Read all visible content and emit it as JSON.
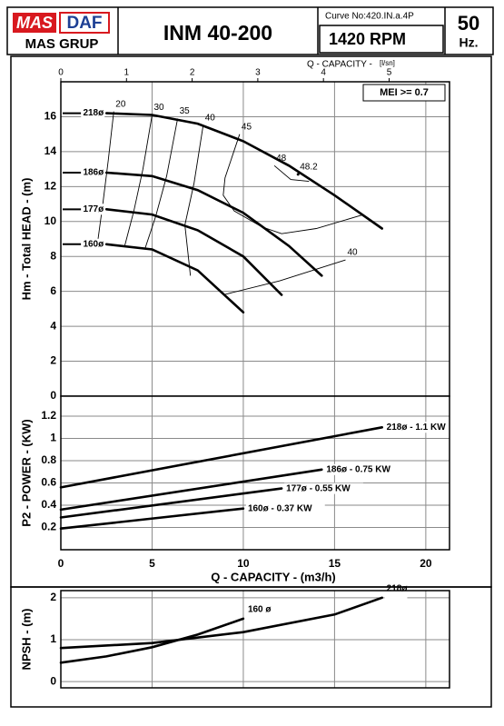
{
  "header": {
    "brand_mas": "MAS",
    "brand_daf": "DAF",
    "brand_group": "MAS GRUP",
    "model": "INM 40-200",
    "curve_no": "Curve No:420.IN.a.4P",
    "speed": "1420 RPM",
    "frequency": "50",
    "frequency_unit": "Hz."
  },
  "chart_data": [
    {
      "type": "line",
      "ylabel": "Hm - Total HEAD - (m)",
      "x2label": "Q - CAPACITY -",
      "x2unit": "[l/sn]",
      "annotation": "MEI >= 0.7",
      "xlim": [
        0,
        21.3
      ],
      "xticks": [
        0,
        5,
        10,
        15,
        20
      ],
      "show_xtick_labels": false,
      "ylim": [
        0,
        18
      ],
      "yticks": [
        0,
        2,
        4,
        6,
        8,
        10,
        12,
        14,
        16
      ],
      "x2lim": [
        0,
        5.92
      ],
      "x2ticks": [
        0,
        1,
        2,
        3,
        4,
        5
      ],
      "grid": true,
      "series_label_position": "start",
      "series": [
        {
          "name": "218ø",
          "color": "#000000",
          "x": [
            2.5,
            5,
            7.5,
            10,
            12.5,
            15,
            17.6
          ],
          "values": [
            16.2,
            16.1,
            15.6,
            14.6,
            13.2,
            11.5,
            9.6
          ]
        },
        {
          "name": "186ø",
          "color": "#000000",
          "x": [
            2.5,
            5,
            7.5,
            10,
            12.5,
            14.3
          ],
          "values": [
            12.8,
            12.6,
            11.8,
            10.5,
            8.6,
            6.9
          ]
        },
        {
          "name": "177ø",
          "color": "#000000",
          "x": [
            2.5,
            5,
            7.5,
            10,
            12.1
          ],
          "values": [
            10.7,
            10.4,
            9.5,
            8.0,
            5.8
          ]
        },
        {
          "name": "160ø",
          "color": "#000000",
          "x": [
            2.5,
            5,
            7.5,
            10
          ],
          "values": [
            8.7,
            8.4,
            7.2,
            4.8
          ]
        }
      ],
      "efficiency_lines": [
        {
          "name": "20",
          "x": [
            2.9,
            2.6,
            2.3,
            2.0
          ],
          "values": [
            16.3,
            13.5,
            11.0,
            8.7
          ]
        },
        {
          "name": "30",
          "x": [
            5.0,
            4.5,
            4.0,
            3.5
          ],
          "values": [
            16.1,
            13.0,
            10.6,
            8.6
          ]
        },
        {
          "name": "35",
          "x": [
            6.4,
            5.8,
            5.2,
            4.6
          ],
          "values": [
            15.9,
            12.6,
            10.3,
            8.4
          ]
        },
        {
          "name": "40",
          "x": [
            7.8,
            7.3,
            6.8,
            7.1
          ],
          "values": [
            15.5,
            12.2,
            9.8,
            6.9
          ]
        },
        {
          "name": "45",
          "x": [
            9.8,
            9.0,
            8.9,
            9.5,
            11.0,
            12.1,
            14.0,
            16.6
          ],
          "values": [
            15.0,
            12.5,
            11.5,
            10.6,
            9.7,
            9.3,
            9.6,
            10.4
          ]
        },
        {
          "name": "48",
          "x": [
            11.7,
            12.6,
            13.6
          ],
          "values": [
            13.2,
            12.4,
            12.3
          ]
        },
        {
          "name": "48.2",
          "x": [
            13.0
          ],
          "values": [
            12.7
          ]
        },
        {
          "name": "40",
          "x": [
            15.6,
            12.0,
            8.9
          ],
          "values": [
            7.8,
            6.6,
            5.8
          ]
        }
      ]
    },
    {
      "type": "line",
      "ylabel": "P2 - POWER - (KW)",
      "xlabel": "Q - CAPACITY - (m3/h)",
      "xlim": [
        0,
        21.3
      ],
      "xticks": [
        0,
        5,
        10,
        15,
        20
      ],
      "show_xtick_labels": true,
      "ylim": [
        0,
        1.38
      ],
      "yticks": [
        0.2,
        0.4,
        0.6,
        0.8,
        1,
        1.2
      ],
      "grid": true,
      "series_label_position": "end",
      "series": [
        {
          "name": "218ø - 1.1 KW",
          "color": "#000000",
          "x": [
            0,
            17.6
          ],
          "values": [
            0.56,
            1.1
          ]
        },
        {
          "name": "186ø - 0.75 KW",
          "color": "#000000",
          "x": [
            0,
            14.3
          ],
          "values": [
            0.36,
            0.72
          ]
        },
        {
          "name": "177ø - 0.55 KW",
          "color": "#000000",
          "x": [
            0,
            12.1
          ],
          "values": [
            0.29,
            0.55
          ]
        },
        {
          "name": "160ø - 0.37 KW",
          "color": "#000000",
          "x": [
            0,
            10
          ],
          "values": [
            0.19,
            0.37
          ]
        }
      ]
    },
    {
      "type": "line",
      "ylabel": "NPSH - (m)",
      "xlim": [
        0,
        21.3
      ],
      "xticks": [
        0,
        5,
        10,
        15,
        20
      ],
      "show_xtick_labels": false,
      "ylim": [
        -0.15,
        2.17
      ],
      "yticks": [
        0,
        1,
        2
      ],
      "grid": true,
      "series_label_position": "end",
      "series": [
        {
          "name": "160 ø",
          "color": "#000000",
          "x": [
            0,
            2.5,
            5,
            7.5,
            10
          ],
          "values": [
            0.45,
            0.6,
            0.82,
            1.12,
            1.5
          ]
        },
        {
          "name": "218ø",
          "color": "#000000",
          "x": [
            0,
            5,
            10,
            15,
            17.6
          ],
          "values": [
            0.8,
            0.92,
            1.18,
            1.6,
            2.0
          ]
        }
      ]
    }
  ]
}
